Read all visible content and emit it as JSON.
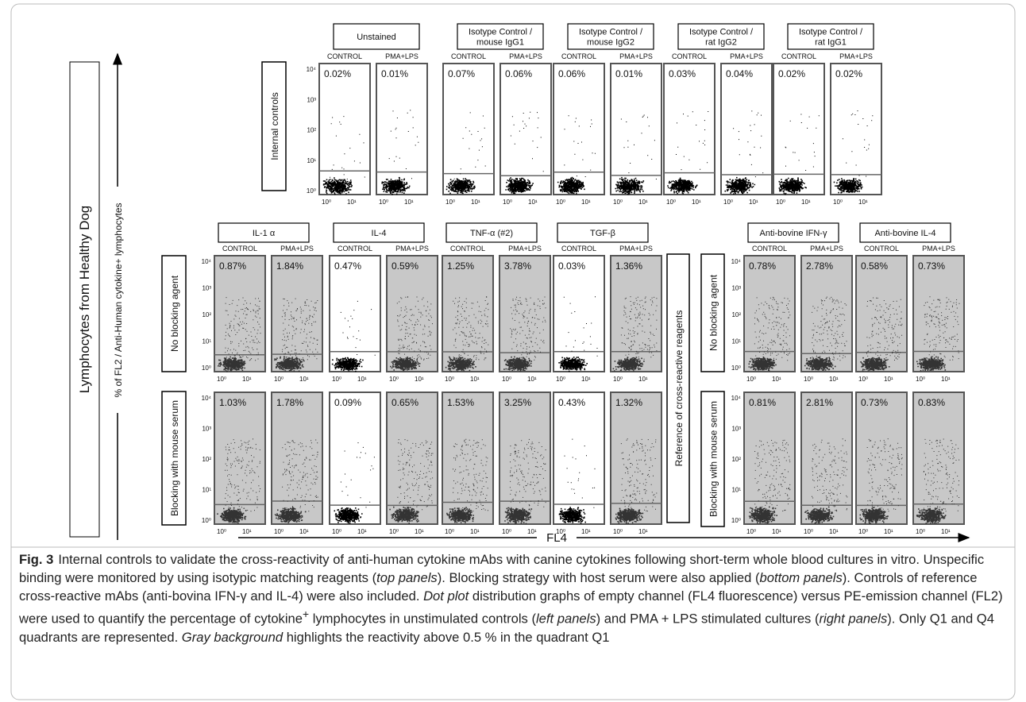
{
  "side_label": "Lymphocytes from Healthy Dog",
  "y_axis_label": "% of FL2 / Anti-Human cytokine+ lymphocytes",
  "x_axis_label": "FL4",
  "sample_labels": [
    "CONTROL",
    "PMA+LPS"
  ],
  "y_ticks": [
    "10⁰",
    "10¹",
    "10²",
    "10³",
    "10⁴"
  ],
  "x_ticks": [
    "10⁰",
    "10¹"
  ],
  "internal_controls": {
    "label": "Internal controls",
    "groups": [
      {
        "title": [
          "Unstained"
        ],
        "percentages": [
          "0.02%",
          "0.01%"
        ]
      },
      {
        "title": [
          "Isotype Control /",
          "mouse IgG1"
        ],
        "percentages": [
          "0.07%",
          "0.06%"
        ]
      },
      {
        "title": [
          "Isotype Control /",
          "mouse IgG2"
        ],
        "percentages": [
          "0.06%",
          "0.01%"
        ]
      },
      {
        "title": [
          "Isotype Control /",
          "rat IgG2"
        ],
        "percentages": [
          "0.03%",
          "0.04%"
        ]
      },
      {
        "title": [
          "Isotype Control /",
          "rat IgG1"
        ],
        "percentages": [
          "0.02%",
          "0.02%"
        ]
      }
    ]
  },
  "row_labels": [
    "No blocking agent",
    "Blocking with mouse  serum"
  ],
  "cytokines": [
    {
      "title": "IL-1 α",
      "no_blocking": [
        "0.87%",
        "1.84%"
      ],
      "mouse_serum": [
        "1.03%",
        "1.78%"
      ],
      "gray": [
        true,
        true
      ]
    },
    {
      "title": "IL-4",
      "no_blocking": [
        "0.47%",
        "0.59%"
      ],
      "mouse_serum": [
        "0.09%",
        "0.65%"
      ],
      "gray": [
        false,
        true
      ]
    },
    {
      "title": "TNF-α (#2)",
      "no_blocking": [
        "1.25%",
        "3.78%"
      ],
      "mouse_serum": [
        "1.53%",
        "3.25%"
      ],
      "gray": [
        true,
        true
      ]
    },
    {
      "title": "TGF-β",
      "no_blocking": [
        "0.03%",
        "1.36%"
      ],
      "mouse_serum": [
        "0.43%",
        "1.32%"
      ],
      "gray": [
        false,
        true
      ]
    }
  ],
  "reference": {
    "label": "Reference of cross-reactive reagents",
    "row_labels": [
      "No blocking agent",
      "Blocking with mouse  serum"
    ],
    "groups": [
      {
        "title": "Anti-bovine IFN-γ",
        "no_blocking": [
          "0.78%",
          "2.78%"
        ],
        "mouse_serum": [
          "0.81%",
          "2.81%"
        ],
        "gray": [
          true,
          true
        ]
      },
      {
        "title": "Anti-bovine IL-4",
        "no_blocking": [
          "0.58%",
          "0.73%"
        ],
        "mouse_serum": [
          "0.73%",
          "0.83%"
        ],
        "gray": [
          true,
          true
        ]
      }
    ]
  },
  "caption": {
    "label": "Fig. 3",
    "segments": [
      {
        "text": "Internal controls to validate the cross-reactivity of anti-human cytokine mAbs with canine cytokines following short-term whole blood cultures in vitro. Unspecific binding were monitored by using isotypic matching reagents ("
      },
      {
        "text": "top panels",
        "italic": true
      },
      {
        "text": "). Blocking strategy with host serum were also applied ("
      },
      {
        "text": "bottom panels",
        "italic": true
      },
      {
        "text": "). Controls of reference cross-reactive mAbs (anti-bovina IFN-γ and IL-4) were also included. "
      },
      {
        "text": "Dot plot",
        "italic": true
      },
      {
        "text": " distribution graphs of empty channel (FL4 fluorescence) versus PE-emission channel (FL2) were used to quantify the percentage of cytokine"
      },
      {
        "text": "+",
        "sup": true
      },
      {
        "text": " lymphocytes in unstimulated controls ("
      },
      {
        "text": "left panels",
        "italic": true
      },
      {
        "text": ") and PMA + LPS stimulated cultures ("
      },
      {
        "text": "right panels",
        "italic": true
      },
      {
        "text": "). Only Q1 and Q4 quadrants are represented. "
      },
      {
        "text": "Gray background",
        "italic": true
      },
      {
        "text": " highlights the reactivity above 0.5 % in the quadrant Q1"
      }
    ]
  }
}
